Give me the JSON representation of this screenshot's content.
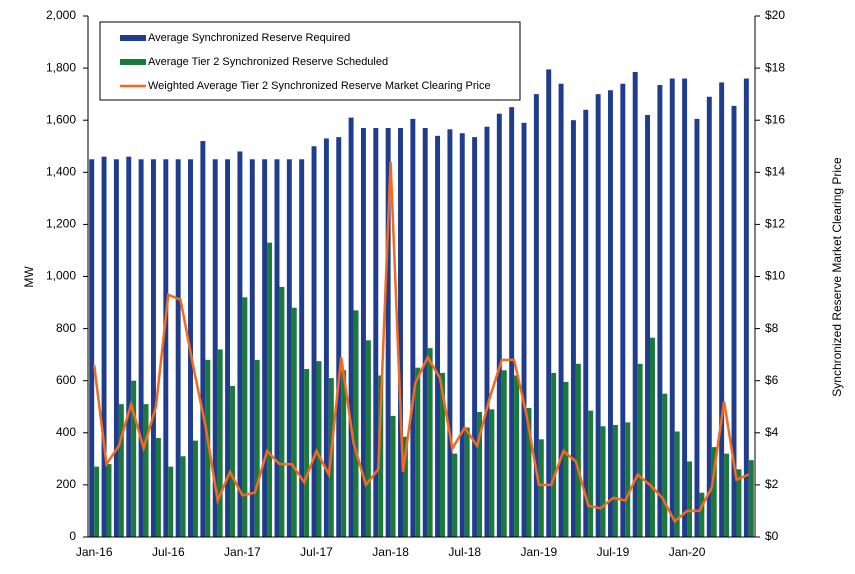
{
  "chart_data": {
    "type": "bar_line",
    "y_label": "MW",
    "y2_label": "Synchronized Reserve Market Clearing Price",
    "categories": [
      "Jan-16",
      null,
      null,
      null,
      null,
      null,
      "Jul-16",
      null,
      null,
      null,
      null,
      null,
      "Jan-17",
      null,
      null,
      null,
      null,
      null,
      "Jul-17",
      null,
      null,
      null,
      null,
      null,
      "Jan-18",
      null,
      null,
      null,
      null,
      null,
      "Jul-18",
      null,
      null,
      null,
      null,
      null,
      "Jan-19",
      null,
      null,
      null,
      null,
      null,
      "Jul-19",
      null,
      null,
      null,
      null,
      null,
      "Jan-20",
      null,
      null,
      null,
      null,
      null
    ],
    "series": [
      {
        "name": "Average Synchronized Reserve Required",
        "color": "#1f3d8c",
        "kind": "bar",
        "values": [
          1450,
          1460,
          1450,
          1460,
          1450,
          1450,
          1450,
          1450,
          1450,
          1520,
          1450,
          1450,
          1480,
          1450,
          1450,
          1450,
          1450,
          1450,
          1500,
          1530,
          1535,
          1610,
          1570,
          1570,
          1570,
          1570,
          1605,
          1570,
          1540,
          1565,
          1550,
          1535,
          1575,
          1625,
          1650,
          1590,
          1700,
          1795,
          1740,
          1600,
          1640,
          1700,
          1715,
          1740,
          1785,
          1620,
          1735,
          1760,
          1760,
          1605,
          1690,
          1745,
          1655,
          1760
        ]
      },
      {
        "name": "Average Tier 2 Synchronized Reserve Scheduled",
        "color": "#1a7a3a",
        "kind": "bar",
        "values": [
          270,
          280,
          510,
          600,
          510,
          380,
          270,
          310,
          370,
          680,
          720,
          580,
          920,
          680,
          1130,
          960,
          880,
          645,
          675,
          610,
          640,
          870,
          755,
          620,
          465,
          385,
          650,
          725,
          630,
          320,
          420,
          480,
          490,
          640,
          620,
          495,
          375,
          630,
          595,
          665,
          485,
          425,
          430,
          440,
          665,
          765,
          550,
          405,
          290,
          170,
          345,
          320,
          260,
          295
        ]
      },
      {
        "name": "Weighted Average Tier 2 Synchronized Reserve Market Clearing Price",
        "color": "#f26a21",
        "kind": "line",
        "axis": "y2",
        "values": [
          6.6,
          2.8,
          3.5,
          5.1,
          3.4,
          5.0,
          9.3,
          9.1,
          6.6,
          4.3,
          1.4,
          2.5,
          1.6,
          1.7,
          3.3,
          2.8,
          2.8,
          2.1,
          3.3,
          2.4,
          6.9,
          3.6,
          2.0,
          2.6,
          14.4,
          2.5,
          5.9,
          6.9,
          6.1,
          3.4,
          4.2,
          3.5,
          5.3,
          6.8,
          6.8,
          4.7,
          2.0,
          2.0,
          3.3,
          2.9,
          1.2,
          1.1,
          1.5,
          1.4,
          2.4,
          2.0,
          1.5,
          0.6,
          1.0,
          1.0,
          1.9,
          5.2,
          2.2,
          2.4
        ]
      }
    ],
    "ylim": [
      0,
      2000
    ],
    "yticks": [
      0,
      200,
      400,
      600,
      800,
      {
        "value": 1000,
        "label": "1,000"
      },
      {
        "value": 1200,
        "label": "1,200"
      },
      {
        "value": 1400,
        "label": "1,400"
      },
      {
        "value": 1600,
        "label": "1,600"
      },
      {
        "value": 1800,
        "label": "1,800"
      },
      {
        "value": 2000,
        "label": "2,000"
      }
    ],
    "y2lim": [
      0,
      20
    ],
    "y2ticks": [
      {
        "value": 0,
        "label": "$0"
      },
      {
        "value": 2,
        "label": "$2"
      },
      {
        "value": 4,
        "label": "$4"
      },
      {
        "value": 6,
        "label": "$6"
      },
      {
        "value": 8,
        "label": "$8"
      },
      {
        "value": 10,
        "label": "$10"
      },
      {
        "value": 12,
        "label": "$12"
      },
      {
        "value": 14,
        "label": "$14"
      },
      {
        "value": 16,
        "label": "$16"
      },
      {
        "value": 18,
        "label": "$18"
      },
      {
        "value": 20,
        "label": "$20"
      }
    ],
    "legend": "upper left"
  }
}
